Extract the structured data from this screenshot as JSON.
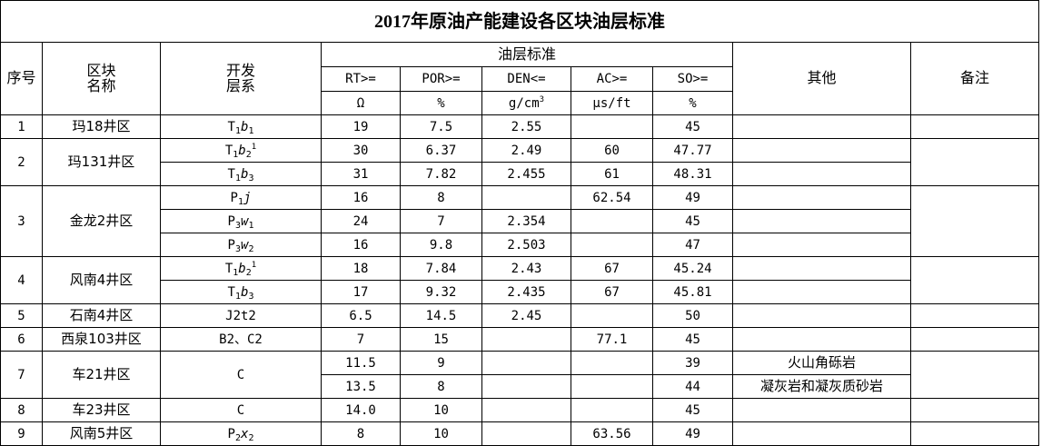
{
  "title": "2017年原油产能建设各区块油层标准",
  "header": {
    "seq": "序号",
    "block_1": "区块",
    "block_2": "名称",
    "layer_1": "开发",
    "layer_2": "层系",
    "group": "油层标准",
    "rt": "RT>=",
    "por": "POR>=",
    "den": "DEN<=",
    "ac": "AC>=",
    "so": "SO>=",
    "other": "其他",
    "remark": "备注",
    "unit_rt": "Ω",
    "unit_por": "%",
    "unit_den_base": "g/cm",
    "unit_den_exp": "3",
    "unit_ac": "μs/ft",
    "unit_so": "%"
  },
  "blocks": [
    {
      "seq": "1",
      "name": "玛18井区",
      "rows": [
        {
          "layer": [
            "T",
            "1",
            "b",
            "1",
            ""
          ],
          "rt": "19",
          "por": "7.5",
          "den": "2.55",
          "ac": "",
          "so": "45",
          "other": ""
        }
      ]
    },
    {
      "seq": "2",
      "name": "玛131井区",
      "rows": [
        {
          "layer": [
            "T",
            "1",
            "b",
            "2",
            "1"
          ],
          "rt": "30",
          "por": "6.37",
          "den": "2.49",
          "ac": "60",
          "so": "47.77",
          "other": ""
        },
        {
          "layer": [
            "T",
            "1",
            "b",
            "3",
            ""
          ],
          "rt": "31",
          "por": "7.82",
          "den": "2.455",
          "ac": "61",
          "so": "48.31",
          "other": ""
        }
      ]
    },
    {
      "seq": "3",
      "name": "金龙2井区",
      "rows": [
        {
          "layer": [
            "P",
            "1",
            "j",
            "",
            ""
          ],
          "rt": "16",
          "por": "8",
          "den": "",
          "ac": "62.54",
          "so": "49",
          "other": ""
        },
        {
          "layer": [
            "P",
            "3",
            "w",
            "1",
            ""
          ],
          "rt": "24",
          "por": "7",
          "den": "2.354",
          "ac": "",
          "so": "45",
          "other": ""
        },
        {
          "layer": [
            "P",
            "3",
            "w",
            "2",
            ""
          ],
          "rt": "16",
          "por": "9.8",
          "den": "2.503",
          "ac": "",
          "so": "47",
          "other": ""
        }
      ]
    },
    {
      "seq": "4",
      "name": "风南4井区",
      "rows": [
        {
          "layer": [
            "T",
            "1",
            "b",
            "2",
            "1"
          ],
          "rt": "18",
          "por": "7.84",
          "den": "2.43",
          "ac": "67",
          "so": "45.24",
          "other": ""
        },
        {
          "layer": [
            "T",
            "1",
            "b",
            "3",
            ""
          ],
          "rt": "17",
          "por": "9.32",
          "den": "2.435",
          "ac": "67",
          "so": "45.81",
          "other": ""
        }
      ]
    },
    {
      "seq": "5",
      "name": "石南4井区",
      "rows": [
        {
          "layer_text": "J2t2",
          "rt": "6.5",
          "por": "14.5",
          "den": "2.45",
          "ac": "",
          "so": "50",
          "other": ""
        }
      ]
    },
    {
      "seq": "6",
      "name": "西泉103井区",
      "rows": [
        {
          "layer_text": "B2、C2",
          "rt": "7",
          "por": "15",
          "den": "",
          "ac": "77.1",
          "so": "45",
          "other": ""
        }
      ]
    },
    {
      "seq": "7",
      "name": "车21井区",
      "layer_text": "C",
      "rows": [
        {
          "rt": "11.5",
          "por": "9",
          "den": "",
          "ac": "",
          "so": "39",
          "other": "火山角砾岩"
        },
        {
          "rt": "13.5",
          "por": "8",
          "den": "",
          "ac": "",
          "so": "44",
          "other": "凝灰岩和凝灰质砂岩"
        }
      ]
    },
    {
      "seq": "8",
      "name": "车23井区",
      "rows": [
        {
          "layer_text": "C",
          "rt": "14.0",
          "por": "10",
          "den": "",
          "ac": "",
          "so": "45",
          "other": ""
        }
      ]
    },
    {
      "seq": "9",
      "name": "风南5井区",
      "rows": [
        {
          "layer": [
            "P",
            "2",
            "x",
            "2",
            ""
          ],
          "rt": "8",
          "por": "10",
          "den": "",
          "ac": "63.56",
          "so": "49",
          "other": ""
        }
      ]
    }
  ]
}
